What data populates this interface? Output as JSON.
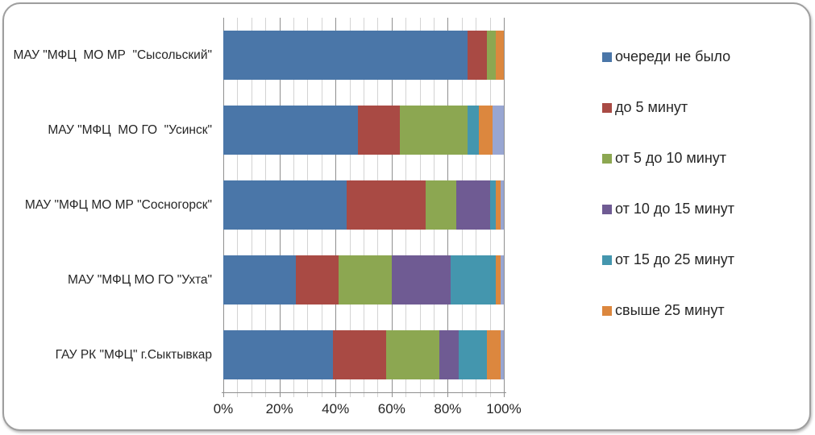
{
  "chart_data": {
    "type": "bar",
    "orientation": "horizontal",
    "stacked": true,
    "grid": true,
    "legend_position": "right",
    "title": "",
    "categories": [
      "МАУ \"МФЦ  МО МР  \"Сысольский\"",
      "МАУ \"МФЦ  МО ГО  \"Усинск\"",
      "МАУ \"МФЦ МО МР \"Сосногорск\"",
      "МАУ \"МФЦ МО ГО \"Ухта\"",
      "ГАУ РК \"МФЦ\" г.Сыктывкар"
    ],
    "series": [
      {
        "name": "очереди не было",
        "color": "#4a76a8",
        "in_legend": true,
        "values": [
          87,
          48,
          44,
          26,
          39
        ]
      },
      {
        "name": "до 5 минут",
        "color": "#a94a44",
        "in_legend": true,
        "values": [
          7,
          15,
          28,
          15,
          19
        ]
      },
      {
        "name": "от 5 до 10 минут",
        "color": "#8ca751",
        "in_legend": true,
        "values": [
          3,
          24,
          11,
          19,
          19
        ]
      },
      {
        "name": "от 10 до 15 минут",
        "color": "#6f5b93",
        "in_legend": true,
        "values": [
          0,
          0,
          12,
          21,
          7
        ]
      },
      {
        "name": "от 15 до 25 минут",
        "color": "#4496ae",
        "in_legend": true,
        "values": [
          0,
          4,
          2,
          16,
          10
        ]
      },
      {
        "name": "свыше 25 минут",
        "color": "#dc873e",
        "in_legend": true,
        "values": [
          3,
          5,
          2,
          2,
          5
        ]
      },
      {
        "name": "",
        "color": "#98a6d2",
        "in_legend": false,
        "values": [
          0,
          4,
          1,
          1,
          1
        ]
      }
    ],
    "x_axis": {
      "min": 0,
      "max": 100,
      "minor_step": 5,
      "major_step": 20,
      "tick_labels": [
        "0%",
        "20%",
        "40%",
        "60%",
        "80%",
        "100%"
      ]
    },
    "colors": {
      "grid_minor": "#d3d3d3",
      "grid_major": "#8f8f8f",
      "axis": "#8f8f8f",
      "text": "#262626",
      "frame_border": "#9e9e9e"
    }
  }
}
